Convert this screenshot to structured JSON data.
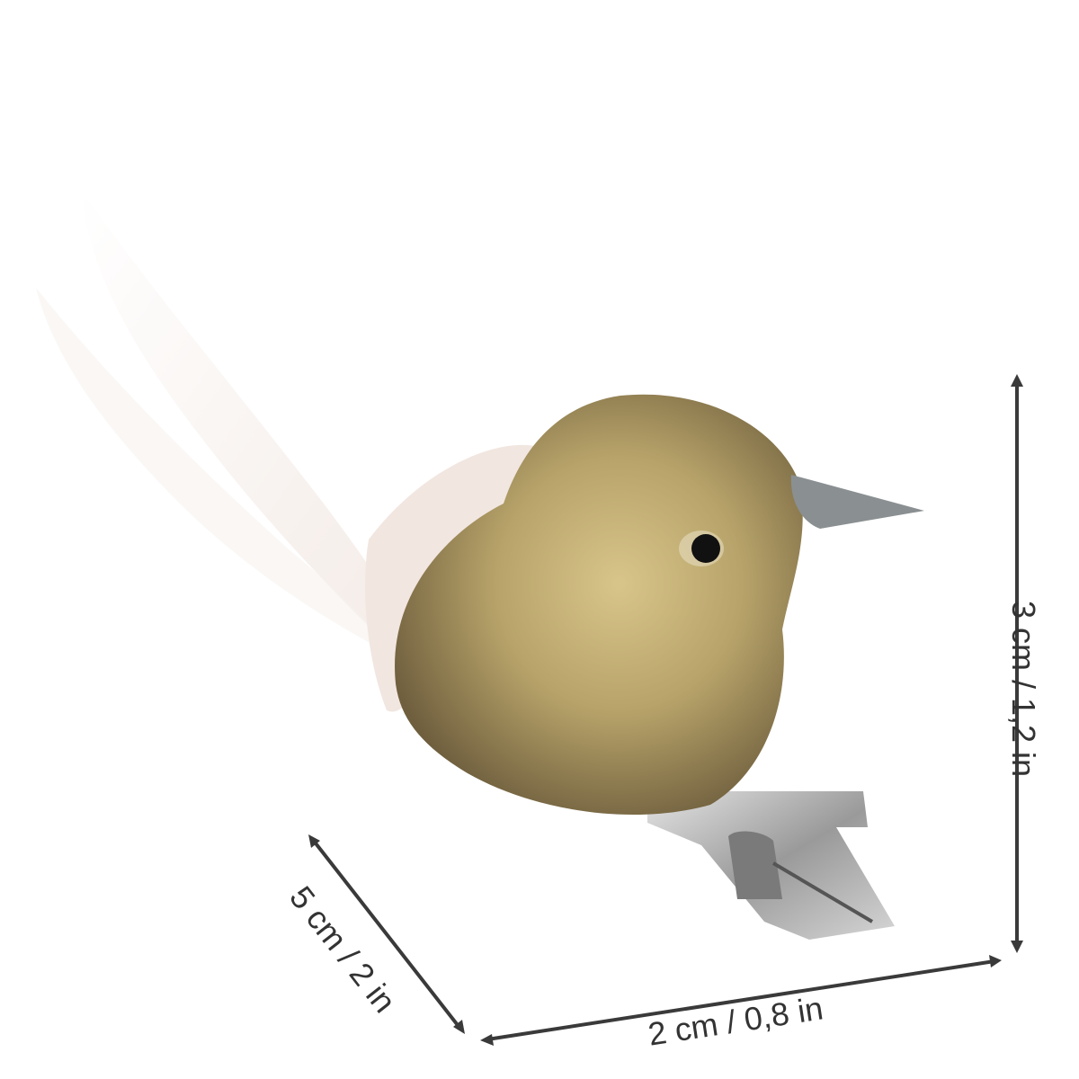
{
  "product": {
    "subject": "glitter-bird-clip-ornament",
    "colors": {
      "body": "#b8a46a",
      "feather": "#f4ece6",
      "beak": "#8a8f92",
      "clip": "#b9b9b9",
      "annotation": "#3a3a3a"
    }
  },
  "dimensions": {
    "height_label": "3 cm / 1,2 in",
    "depth_label": "5 cm / 2 in",
    "width_label": "2 cm / 0,8 in"
  }
}
